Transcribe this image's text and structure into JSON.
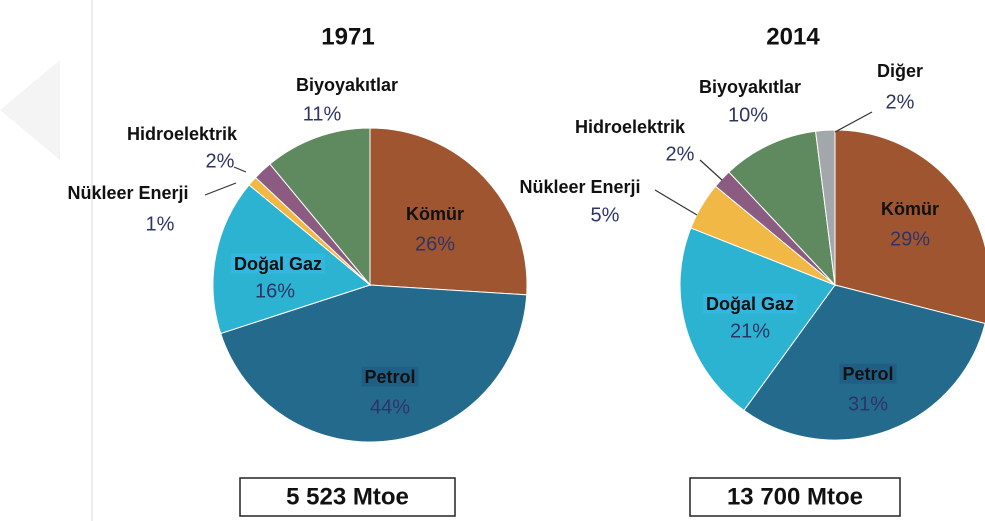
{
  "chart_data": [
    {
      "type": "pie",
      "title": "1971",
      "categories": [
        "Kömür",
        "Petrol",
        "Doğal Gaz",
        "Nükleer Enerji",
        "Hidroelektrik",
        "Biyoyakıtlar"
      ],
      "values": [
        26,
        44,
        16,
        1,
        2,
        11
      ],
      "value_labels": [
        "26%",
        "44%",
        "16%",
        "1%",
        "2%",
        "11%"
      ],
      "colors": [
        "#9e5530",
        "#246a8c",
        "#2cb3d1",
        "#f2b845",
        "#8c5b82",
        "#5f8a60"
      ],
      "annotation": "5 523 Mtoe"
    },
    {
      "type": "pie",
      "title": "2014",
      "categories": [
        "Kömür",
        "Petrol",
        "Doğal Gaz",
        "Nükleer Enerji",
        "Hidroelektrik",
        "Biyoyakıtlar",
        "Diğer"
      ],
      "values": [
        29,
        31,
        21,
        5,
        2,
        10,
        2
      ],
      "value_labels": [
        "29%",
        "31%",
        "21%",
        "5%",
        "2%",
        "10%",
        "2%"
      ],
      "colors": [
        "#9e5530",
        "#246a8c",
        "#2cb3d1",
        "#f2b845",
        "#8c5b82",
        "#5f8a60",
        "#a3a7ab"
      ],
      "annotation": "13 700 Mtoe"
    }
  ]
}
